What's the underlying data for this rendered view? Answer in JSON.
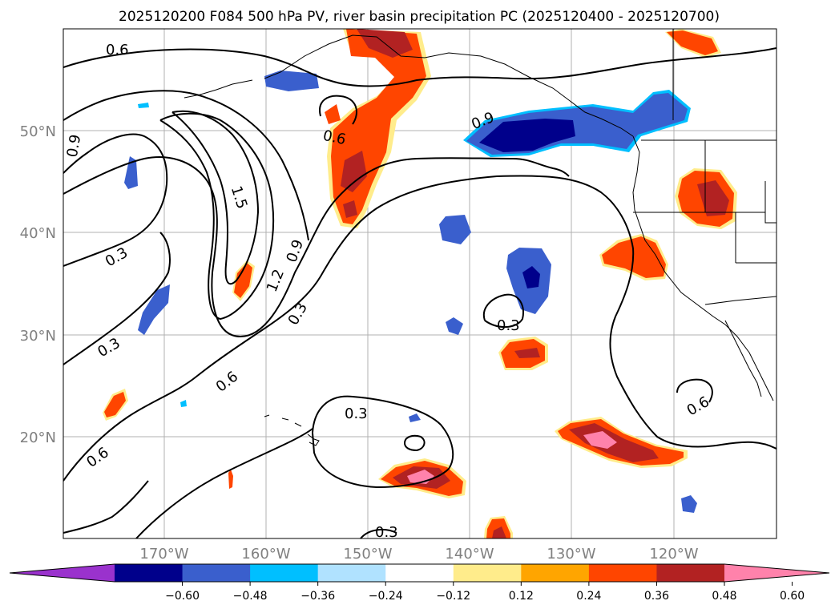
{
  "title": "2025120200 F084 500 hPa PV, river basin precipitation PC (2025120400 - 2025120700)",
  "map": {
    "lat_labels": [
      "50°N",
      "40°N",
      "30°N",
      "20°N"
    ],
    "lon_labels": [
      "170°W",
      "160°W",
      "150°W",
      "140°W",
      "130°W",
      "120°W"
    ]
  },
  "contour_labels": [
    {
      "text": "0.6",
      "name": "contour-label-0-6-north"
    },
    {
      "text": "0.9",
      "name": "contour-label-0-9-west-edge"
    },
    {
      "text": "1.5",
      "name": "contour-label-1-5"
    },
    {
      "text": "0.6",
      "name": "contour-label-0-6-gulf"
    },
    {
      "text": "0.9",
      "name": "contour-label-0-9-bc"
    },
    {
      "text": "0.3",
      "name": "contour-label-0-3-west"
    },
    {
      "text": "0.9",
      "name": "contour-label-0-9-mid"
    },
    {
      "text": "1.2",
      "name": "contour-label-1-2"
    },
    {
      "text": "0.3",
      "name": "contour-label-0-3-trough"
    },
    {
      "text": "0.3",
      "name": "contour-label-0-3-southwest"
    },
    {
      "text": "0.3",
      "name": "contour-label-0-3-east-loop"
    },
    {
      "text": "0.6",
      "name": "contour-label-0-6-south"
    },
    {
      "text": "0.6",
      "name": "contour-label-0-6-southwest"
    },
    {
      "text": "0.3",
      "name": "contour-label-0-3-hawaii"
    },
    {
      "text": "0.6",
      "name": "contour-label-0-6-mexico"
    },
    {
      "text": "0.3",
      "name": "contour-label-0-3-bottom"
    }
  ],
  "colorbar": {
    "colors": [
      "#9a32cd",
      "#00008b",
      "#3a5fcd",
      "#00bfff",
      "#b0e2ff",
      "#ffffff",
      "#ffec8b",
      "#ffa500",
      "#ff4500",
      "#b22222",
      "#ff82ab"
    ],
    "tick_labels": [
      "−0.60",
      "−0.48",
      "−0.36",
      "−0.24",
      "−0.12",
      "0.12",
      "0.24",
      "0.36",
      "0.48",
      "0.60"
    ]
  }
}
